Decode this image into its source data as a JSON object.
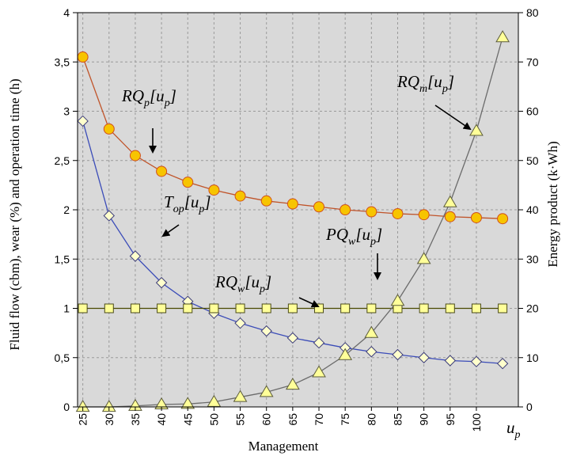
{
  "chart_data": {
    "type": "line",
    "xlabel": "Management",
    "x_end_label": "u_p",
    "ylabel_left": "Fluid flow (cbm), wear (%) and operation time (h)",
    "ylabel_right": "Energy product (k·Wh)",
    "categories": [
      "25",
      "30",
      "35",
      "40",
      "45",
      "50",
      "55",
      "60",
      "65",
      "70",
      "75",
      "80",
      "85",
      "90",
      "95",
      "100"
    ],
    "x": [
      25,
      30,
      35,
      40,
      45,
      50,
      55,
      60,
      65,
      70,
      75,
      80,
      85,
      90,
      95,
      100,
      105
    ],
    "xlim": [
      24,
      108
    ],
    "ylim_left": [
      0,
      4
    ],
    "ylim_right": [
      0,
      80
    ],
    "yticks_left": [
      "0",
      "0,5",
      "1",
      "1,5",
      "2",
      "2,5",
      "3",
      "3,5",
      "4"
    ],
    "yticks_right": [
      "0",
      "10",
      "20",
      "30",
      "40",
      "50",
      "60",
      "70",
      "80"
    ],
    "grid": true,
    "series": [
      {
        "name": "RQ_p[u_p]",
        "axis": "left",
        "marker": "circle",
        "line_color": "#c0542a",
        "marker_fill": "#f7c400",
        "marker_stroke": "#d0501c",
        "values": [
          3.55,
          2.82,
          2.55,
          2.39,
          2.28,
          2.2,
          2.14,
          2.09,
          2.06,
          2.03,
          2.0,
          1.98,
          1.96,
          1.95,
          1.93,
          1.92,
          1.91
        ]
      },
      {
        "name": "T_op[u_p]",
        "axis": "left",
        "marker": "diamond",
        "line_color": "#3b4cb8",
        "marker_fill": "#ffffcc",
        "marker_stroke": "#3b3b7a",
        "values": [
          2.9,
          1.94,
          1.53,
          1.26,
          1.07,
          0.95,
          0.85,
          0.77,
          0.7,
          0.65,
          0.6,
          0.56,
          0.53,
          0.5,
          0.47,
          0.46,
          0.44
        ]
      },
      {
        "name": "RQ_w[u_p]",
        "axis": "left",
        "marker": "square",
        "line_color": "#4a4a00",
        "marker_fill": "#ffff99",
        "marker_stroke": "#4a4a1a",
        "values": [
          1,
          1,
          1,
          1,
          1,
          1,
          1,
          1,
          1,
          1,
          1,
          1,
          1,
          1,
          1,
          1,
          1
        ]
      },
      {
        "name": "RQ_m[u_p]",
        "axis": "right",
        "marker": "triangle",
        "line_color": "#6b6b6b",
        "marker_fill": "#ffff99",
        "marker_stroke": "#5a5a3a",
        "values": [
          0,
          0,
          0.2,
          0.5,
          0.6,
          1.0,
          2.0,
          3.0,
          4.5,
          7,
          10.5,
          15,
          21.5,
          30,
          41.5,
          56,
          75
        ]
      }
    ],
    "annotations": [
      {
        "main": "RQ",
        "sub": "p",
        "arg": "u",
        "argsub": "p",
        "series": "RQ_p[u_p]"
      },
      {
        "main": "RQ",
        "sub": "m",
        "arg": "u",
        "argsub": "p",
        "series": "RQ_m[u_p]"
      },
      {
        "main": "T",
        "sub": "op",
        "arg": "u",
        "argsub": "p",
        "series": "T_op[u_p]"
      },
      {
        "main": "PQ",
        "sub": "w",
        "arg": "u",
        "argsub": "p",
        "series": "PQ_w[u_p]"
      },
      {
        "main": "RQ",
        "sub": "w",
        "arg": "u",
        "argsub": "p",
        "series": "RQ_w[u_p]"
      }
    ]
  }
}
